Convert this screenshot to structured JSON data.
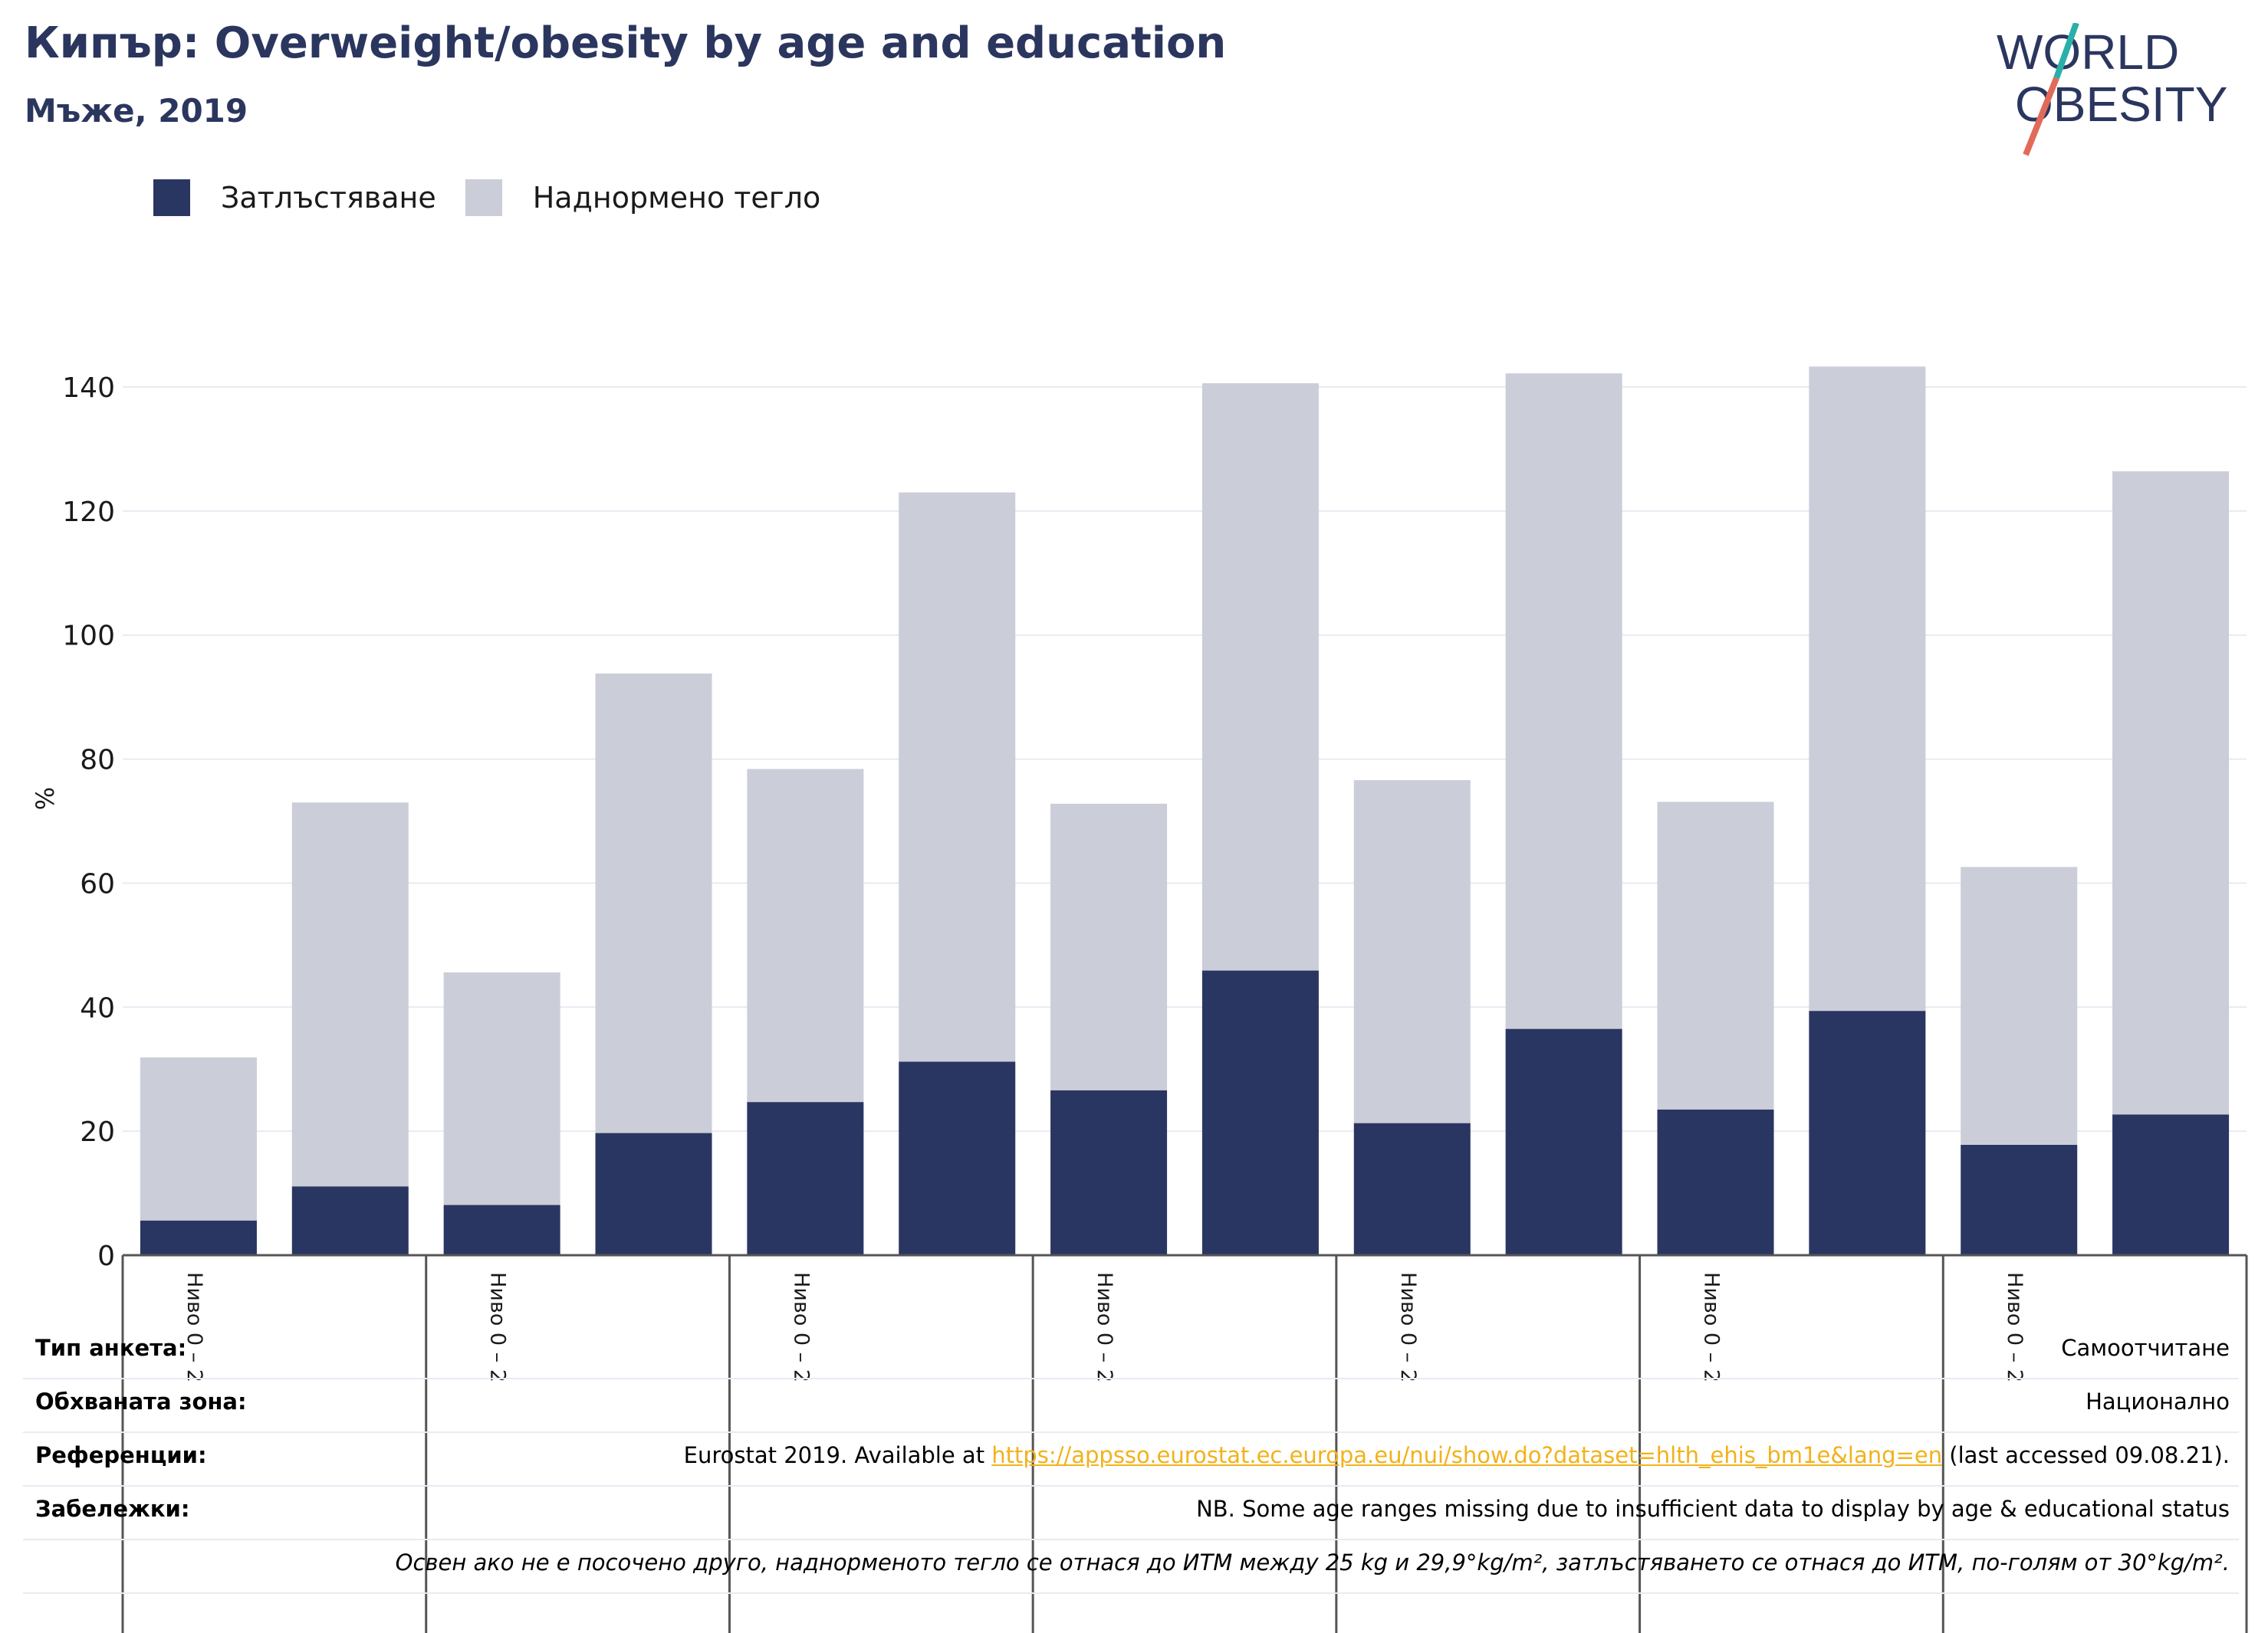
{
  "header": {
    "title": "Кипър: Overweight/obesity by age and education",
    "subtitle": "Мъже, 2019"
  },
  "logo": {
    "line1": "WORLD",
    "line2": "OBESITY"
  },
  "legend": [
    {
      "label": "Затлъстяване",
      "color": "#2a3662"
    },
    {
      "label": "Наднормено тегло",
      "color": "#cbcdd8"
    }
  ],
  "chart_data": {
    "type": "bar",
    "stacked": true,
    "ylabel": "%",
    "ylim": [
      0,
      150
    ],
    "yticks": [
      0,
      20,
      40,
      60,
      80,
      100,
      120,
      140
    ],
    "grid": true,
    "legend_position": "top-left",
    "categories": [
      "Ниво 0 – 2",
      "",
      "Ниво 0 – 2",
      "",
      "Ниво 0 – 2",
      "",
      "Ниво 0 – 2",
      "",
      "Ниво 0 – 2",
      "",
      "Ниво 0 – 2",
      "",
      "Ниво 0 – 2",
      ""
    ],
    "series": [
      {
        "name": "Затлъстяване",
        "color": "#2a3662",
        "values": [
          5.6,
          11.1,
          8.1,
          19.7,
          24.7,
          31.2,
          26.6,
          45.9,
          21.3,
          36.5,
          23.5,
          39.4,
          17.8,
          22.7
        ]
      },
      {
        "name": "Наднормено тегло",
        "color": "#cbcdd8",
        "values": [
          26.3,
          61.9,
          37.5,
          74.1,
          53.7,
          91.8,
          46.2,
          94.7,
          55.3,
          105.7,
          49.6,
          103.9,
          44.8,
          103.7
        ]
      }
    ]
  },
  "info": {
    "survey_type_label": "Тип анкета:",
    "survey_type_value": "Самоотчитане",
    "coverage_label": "Обхваната зона:",
    "coverage_value": "Национално",
    "references_label": "Референции:",
    "references_prefix": "Eurostat 2019. Available at ",
    "references_link": "https://appsso.eurostat.ec.europa.eu/nui/show.do?dataset=hlth_ehis_bm1e&lang=en",
    "references_suffix": " (last accessed 09.08.21).",
    "notes_label": "Забележки:",
    "notes_value": "NB. Some age ranges missing due to insufficient data to display by age & educational status",
    "definition": "Освен ако не е посочено друго, наднорменото тегло се отнася до ИТМ между 25 kg и 29,9°kg/m², затлъстяването се отнася до ИТМ, по-голям от 30°kg/m²."
  }
}
